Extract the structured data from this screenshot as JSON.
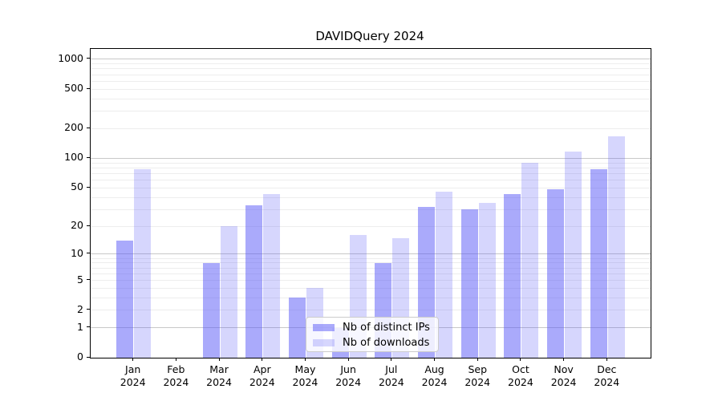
{
  "title": "DAVIDQuery 2024",
  "legend": {
    "items": [
      {
        "label": "Nb of distinct IPs",
        "swatch": "dark"
      },
      {
        "label": "Nb of downloads",
        "swatch": "light"
      }
    ]
  },
  "colors": {
    "bar_dark": "rgba(85,85,248,0.5)",
    "bar_light": "rgba(85,85,248,0.24)",
    "grid_major": "#c8c8c8",
    "grid_minor": "#ededed",
    "axis": "#000000"
  },
  "chart_data": {
    "type": "bar",
    "title": "DAVIDQuery 2024",
    "categories": [
      "Jan 2024",
      "Feb 2024",
      "Mar 2024",
      "Apr 2024",
      "May 2024",
      "Jun 2024",
      "Jul 2024",
      "Aug 2024",
      "Sep 2024",
      "Oct 2024",
      "Nov 2024",
      "Dec 2024"
    ],
    "x_tick_months": [
      "Jan",
      "Feb",
      "Mar",
      "Apr",
      "May",
      "Jun",
      "Jul",
      "Aug",
      "Sep",
      "Oct",
      "Nov",
      "Dec"
    ],
    "x_tick_year": "2024",
    "series": [
      {
        "name": "Nb of distinct IPs",
        "values": [
          14,
          0,
          8,
          33,
          3,
          1,
          8,
          32,
          30,
          43,
          48,
          77
        ]
      },
      {
        "name": "Nb of downloads",
        "values": [
          78,
          0,
          20,
          43,
          4,
          16,
          15,
          46,
          35,
          90,
          117,
          167
        ]
      }
    ],
    "xlabel": "",
    "ylabel": "",
    "yscale": "log1p",
    "ylim": [
      0,
      1300
    ],
    "y_ticks": [
      0,
      1,
      2,
      5,
      10,
      20,
      50,
      100,
      200,
      500,
      1000
    ],
    "grid_major_values": [
      1,
      10,
      100,
      1000
    ],
    "grid_minor_values": [
      2,
      3,
      4,
      5,
      6,
      7,
      8,
      9,
      20,
      30,
      40,
      50,
      60,
      70,
      80,
      90,
      200,
      300,
      400,
      500,
      600,
      700,
      800,
      900
    ],
    "grid": true,
    "legend_position": "lower center inside"
  }
}
